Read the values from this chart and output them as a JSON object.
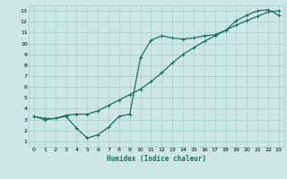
{
  "xlabel": "Humidex (Indice chaleur)",
  "bg_color": "#cde8e4",
  "grid_color": "#a8cfc8",
  "line_color": "#1a6e60",
  "xlim": [
    -0.5,
    23.5
  ],
  "ylim": [
    0.5,
    13.5
  ],
  "xticks": [
    0,
    1,
    2,
    3,
    4,
    5,
    6,
    7,
    8,
    9,
    10,
    11,
    12,
    13,
    14,
    15,
    16,
    17,
    18,
    19,
    20,
    21,
    22,
    23
  ],
  "yticks": [
    1,
    2,
    3,
    4,
    5,
    6,
    7,
    8,
    9,
    10,
    11,
    12,
    13
  ],
  "line1_x": [
    0,
    1,
    2,
    3,
    4,
    5,
    6,
    7,
    8,
    9,
    10,
    11,
    12,
    13,
    14,
    15,
    16,
    17,
    18,
    19,
    20,
    21,
    22,
    23
  ],
  "line1_y": [
    3.3,
    3.1,
    3.1,
    3.4,
    3.5,
    3.5,
    3.8,
    4.3,
    4.8,
    5.3,
    5.8,
    6.5,
    7.3,
    8.2,
    9.0,
    9.6,
    10.2,
    10.7,
    11.2,
    11.7,
    12.1,
    12.5,
    12.9,
    13.0
  ],
  "line2_x": [
    0,
    1,
    2,
    3,
    4,
    5,
    6,
    7,
    8,
    9,
    10,
    11,
    12,
    13,
    14,
    15,
    16,
    17,
    18,
    19,
    20,
    21,
    22,
    23
  ],
  "line2_y": [
    3.3,
    3.0,
    3.1,
    3.3,
    2.2,
    1.3,
    1.6,
    2.3,
    3.3,
    3.5,
    8.7,
    10.3,
    10.7,
    10.5,
    10.4,
    10.5,
    10.7,
    10.8,
    11.2,
    12.1,
    12.6,
    13.0,
    13.1,
    12.6
  ]
}
